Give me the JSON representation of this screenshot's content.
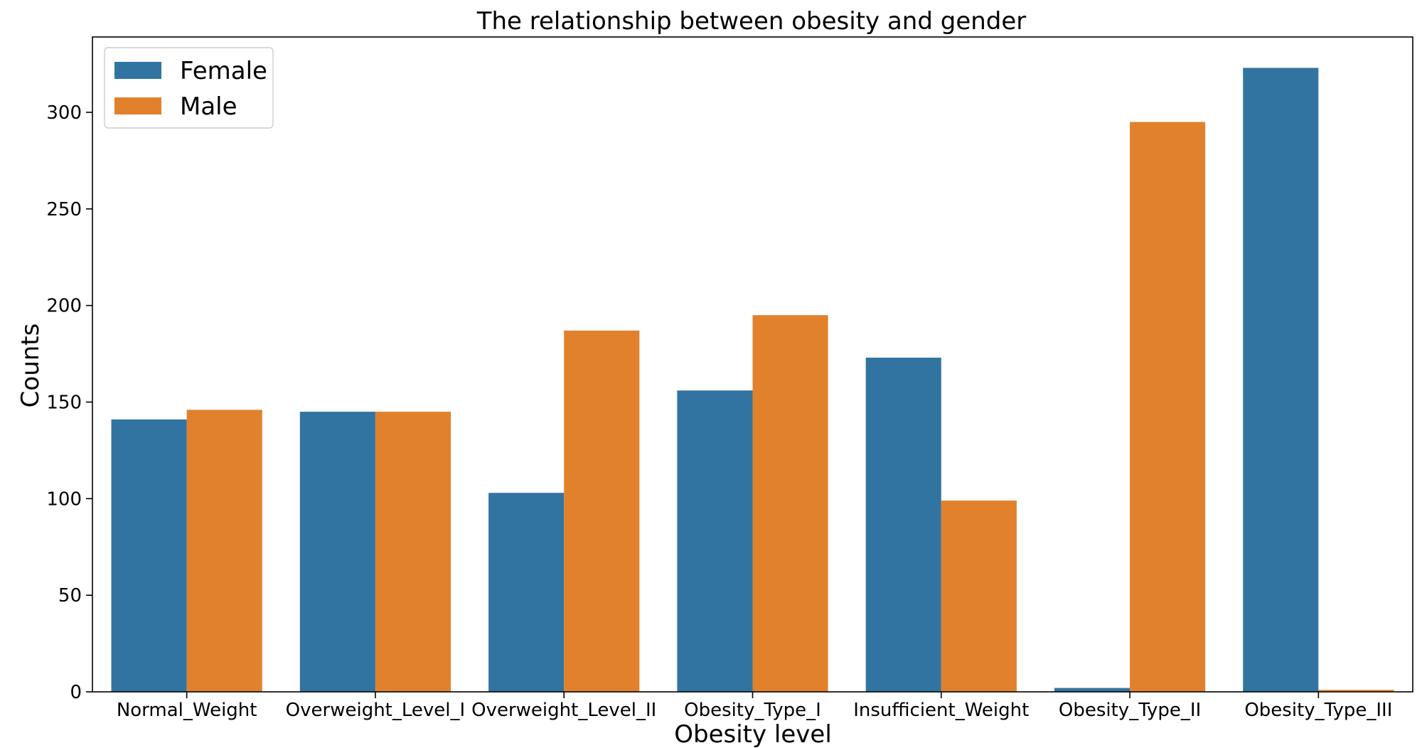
{
  "chart_data": {
    "type": "bar",
    "title": "The relationship between obesity and gender",
    "xlabel": "Obesity level",
    "ylabel": "Counts",
    "categories": [
      "Normal_Weight",
      "Overweight_Level_I",
      "Overweight_Level_II",
      "Obesity_Type_I",
      "Insufficient_Weight",
      "Obesity_Type_II",
      "Obesity_Type_III"
    ],
    "series": [
      {
        "name": "Female",
        "color": "#3274a1",
        "values": [
          141,
          145,
          103,
          156,
          173,
          2,
          323
        ]
      },
      {
        "name": "Male",
        "color": "#e1812c",
        "values": [
          146,
          145,
          187,
          195,
          99,
          295,
          1
        ]
      }
    ],
    "ylim": [
      0,
      339
    ],
    "yticks": [
      0,
      50,
      100,
      150,
      200,
      250,
      300
    ],
    "grid": false,
    "legend_position": "top-left"
  }
}
